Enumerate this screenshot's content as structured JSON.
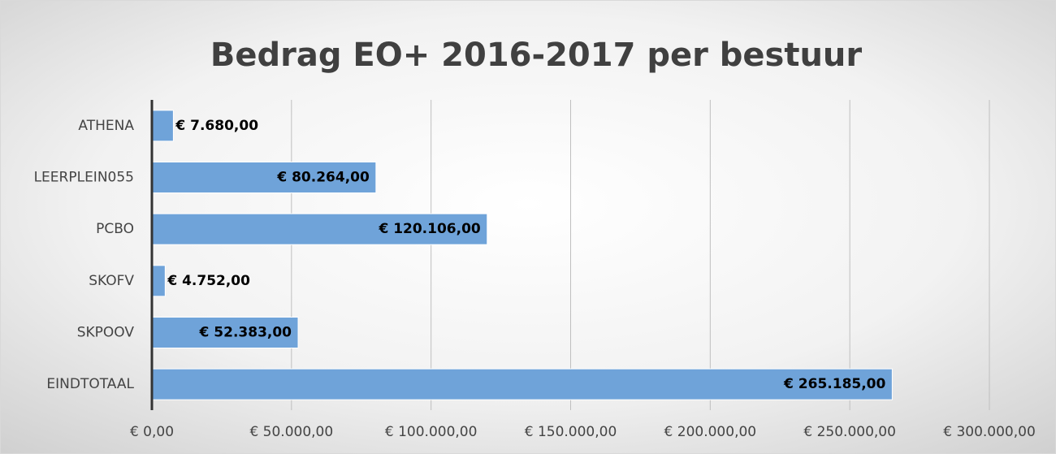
{
  "chart_data": {
    "type": "bar",
    "orientation": "horizontal",
    "title": "Bedrag EO+ 2016-2017 per bestuur",
    "categories": [
      "ATHENA",
      "LEERPLEIN055",
      "PCBO",
      "SKOFV",
      "SKPOOV",
      "EINDTOTAAL"
    ],
    "values": [
      7680,
      80264,
      120106,
      4752,
      52383,
      265185
    ],
    "value_labels": [
      "€ 7.680,00",
      "€ 80.264,00",
      "€ 120.106,00",
      "€ 4.752,00",
      "€ 52.383,00",
      "€ 265.185,00"
    ],
    "color": "#6fa3d9",
    "xlim": [
      0,
      300000
    ],
    "xticks": [
      {
        "value": 0,
        "label": "€ 0,00"
      },
      {
        "value": 50000,
        "label": "€ 50.000,00"
      },
      {
        "value": 100000,
        "label": "€ 100.000,00"
      },
      {
        "value": 150000,
        "label": "€ 150.000,00"
      },
      {
        "value": 200000,
        "label": "€ 200.000,00"
      },
      {
        "value": 250000,
        "label": "€ 250.000,00"
      },
      {
        "value": 300000,
        "label": "€ 300.000,00"
      }
    ],
    "grid": true
  }
}
